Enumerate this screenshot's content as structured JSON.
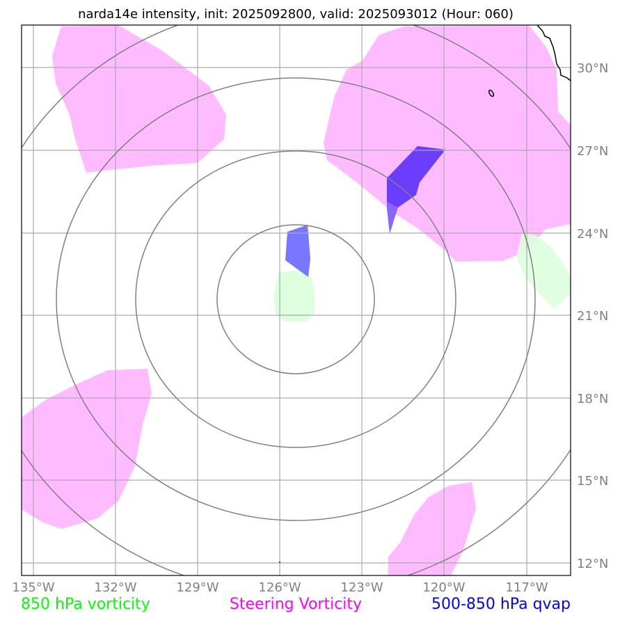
{
  "title": "narda14e intensity, init: 2025092800, valid: 2025093012 (Hour: 060)",
  "longitude_labels": [
    "135°W",
    "132°W",
    "129°W",
    "126°W",
    "123°W",
    "120°W",
    "117°W"
  ],
  "latitude_labels": [
    "30°N",
    "27°N",
    "24°N",
    "21°N",
    "18°N",
    "15°N",
    "12°N"
  ],
  "legend": {
    "vorticity_850": "850 hPa vorticity",
    "steering_vorticity": "Steering Vorticity",
    "qvap": "500-850 hPa qvap"
  },
  "colors": {
    "vorticity_850": "#00ff00",
    "steering_vorticity": "#ff00ff",
    "qvap": "#0000ff",
    "vorticity_850_fill": "#ddffdd",
    "steering_fill": "#ffbbff",
    "qvap_fill": "#7777ff",
    "grid": "#aaaaaa",
    "range_rings": "#808080"
  }
}
